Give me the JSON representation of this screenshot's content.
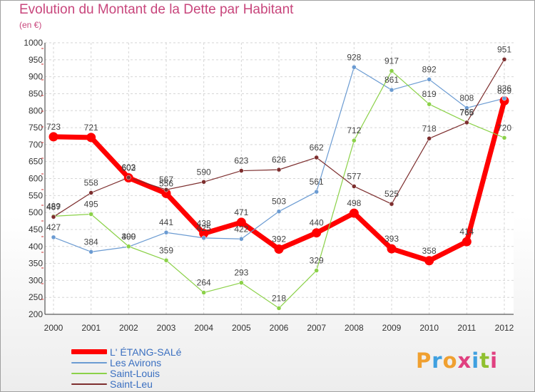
{
  "title": "Evolution du Montant de la Dette par Habitant",
  "subtitle": "(en €)",
  "logo": {
    "text": "Proxiti",
    "letter_colors": [
      "#f0a030",
      "#3fa0e0",
      "#f0a030",
      "#e04080",
      "#3fa0e0",
      "#90c030",
      "#e04080"
    ]
  },
  "chart_data": {
    "type": "line",
    "x": [
      "2000",
      "2001",
      "2002",
      "2003",
      "2004",
      "2005",
      "2006",
      "2007",
      "2008",
      "2009",
      "2010",
      "2011",
      "2012"
    ],
    "ylim": [
      200,
      1000
    ],
    "yticks": [
      200,
      250,
      300,
      350,
      400,
      450,
      500,
      550,
      600,
      650,
      700,
      750,
      800,
      850,
      900,
      950,
      1000
    ],
    "grid": true,
    "legend_position": "bottom-left",
    "series": [
      {
        "name": "L' ÉTANG-SALé",
        "color": "#ff0000",
        "values": [
          723,
          721,
          602,
          556,
          438,
          471,
          392,
          440,
          498,
          393,
          358,
          414,
          829
        ]
      },
      {
        "name": "Les Avirons",
        "color": "#6b9bd2",
        "values": [
          427,
          384,
          399,
          441,
          425,
          422,
          503,
          561,
          928,
          861,
          892,
          808,
          836
        ]
      },
      {
        "name": "Saint-Louis",
        "color": "#8bd148",
        "values": [
          489,
          495,
          400,
          359,
          264,
          293,
          218,
          329,
          712,
          917,
          819,
          766,
          720
        ]
      },
      {
        "name": "Saint-Leu",
        "color": "#7d2e2e",
        "values": [
          487,
          558,
          603,
          567,
          590,
          623,
          626,
          662,
          577,
          525,
          718,
          765,
          951
        ]
      }
    ]
  }
}
